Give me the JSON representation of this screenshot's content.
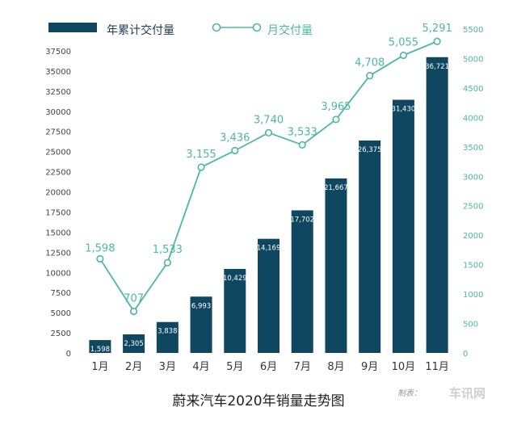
{
  "chart_data": {
    "type": "bar+line",
    "title": "蔚来汽车2020年销量走势图",
    "categories": [
      "1月",
      "2月",
      "3月",
      "4月",
      "5月",
      "6月",
      "7月",
      "8月",
      "9月",
      "10月",
      "11月"
    ],
    "series": [
      {
        "name": "年累计交付量",
        "type": "bar",
        "axis": "left",
        "values": [
          1598,
          2305,
          3838,
          6993,
          10429,
          14169,
          17702,
          21667,
          26375,
          31430,
          36721
        ],
        "labels": [
          "1,598",
          "2,305",
          "3,838",
          "6,993",
          "10,429",
          "14,169",
          "17,702",
          "21,667",
          "26,375",
          "31,430",
          "36,721"
        ]
      },
      {
        "name": "月交付量",
        "type": "line",
        "axis": "right",
        "values": [
          1598,
          707,
          1533,
          3155,
          3436,
          3740,
          3533,
          3965,
          4708,
          5055,
          5291
        ],
        "labels": [
          "1,598",
          "707",
          "1,533",
          "3,155",
          "3,436",
          "3,740",
          "3,533",
          "3,965",
          "4,708",
          "5,055",
          "5,291"
        ]
      }
    ],
    "y_left": {
      "range": [
        0,
        37500
      ],
      "ticks": [
        "0",
        "2500",
        "5000",
        "7500",
        "10000",
        "12500",
        "15000",
        "17500",
        "20000",
        "22500",
        "25000",
        "27500",
        "30000",
        "32500",
        "35000",
        "37500"
      ]
    },
    "y_right": {
      "range": [
        0,
        5500
      ],
      "ticks": [
        "0",
        "500",
        "1000",
        "1500",
        "2000",
        "2500",
        "3000",
        "3500",
        "4000",
        "4500",
        "5000",
        "5500"
      ]
    },
    "grid": false,
    "legend": "top-left",
    "colors": {
      "bar": "#0f4761",
      "line": "#4bb7a8",
      "bar_label": "#ffffff"
    }
  },
  "credit": "制表：",
  "watermark": "车讯网"
}
